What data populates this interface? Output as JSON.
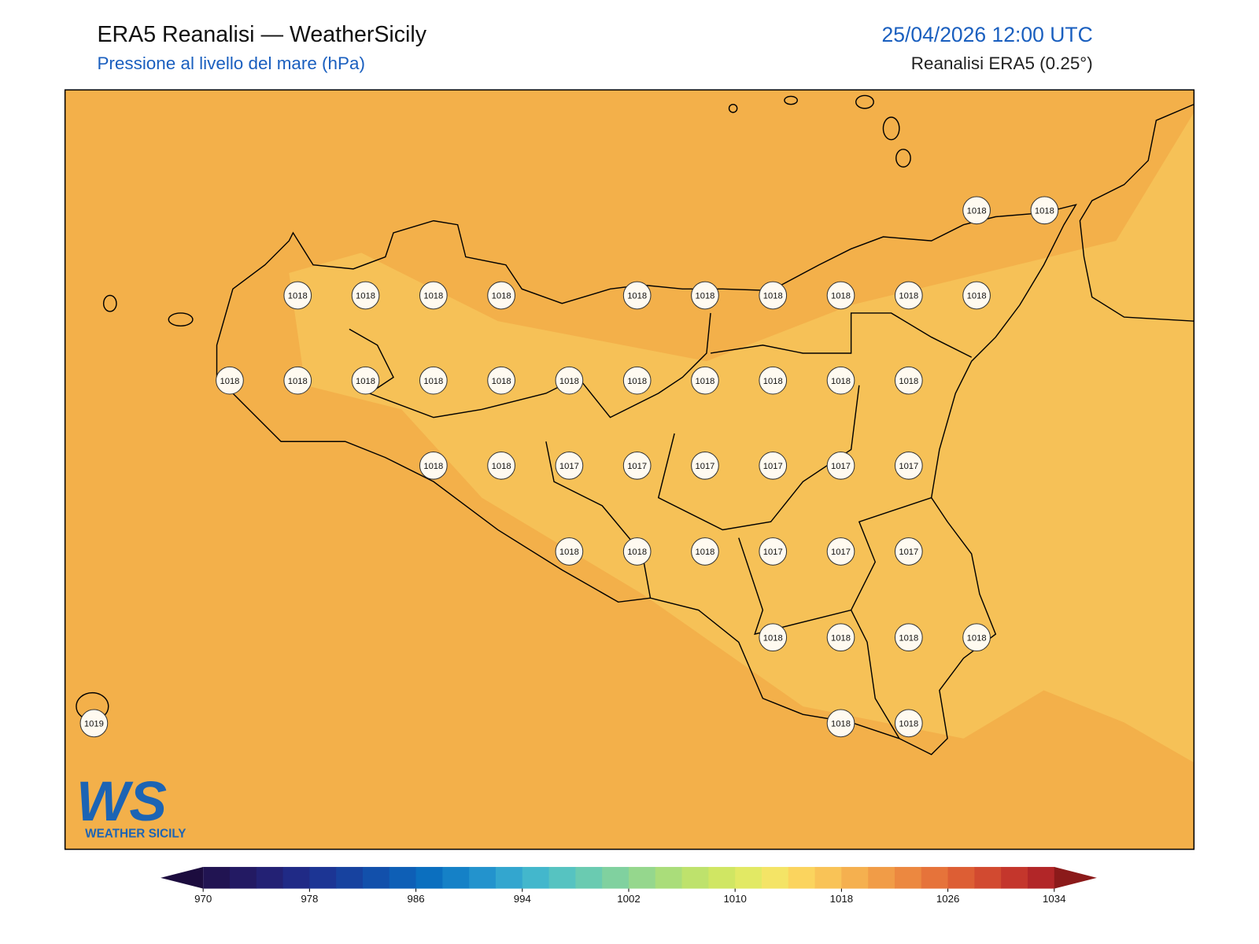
{
  "header": {
    "title": "ERA5 Reanalisi — WeatherSicily",
    "subtitle": "Pressione al livello del mare (hPa)",
    "datetime": "25/04/2026 12:00 UTC",
    "source": "Reanalisi ERA5 (0.25°)"
  },
  "map": {
    "stations": [
      [
        1018,
        1018
      ],
      [
        1018,
        1018,
        1018,
        1018,
        1018,
        1018,
        1018,
        1018,
        1018,
        1018
      ],
      [
        1018,
        1018,
        1018,
        1018,
        1018,
        1018,
        1018,
        1018,
        1018,
        1018,
        1018
      ],
      [
        1018,
        1018,
        1017,
        1017,
        1017,
        1017,
        1017,
        1017
      ],
      [
        1018,
        1018,
        1018,
        1017,
        1017,
        1017
      ],
      [
        1018,
        1018,
        1018,
        1018
      ],
      [
        1019,
        1018,
        1018
      ]
    ]
  },
  "logo": {
    "mark": "WS",
    "text": "WEATHER SICILY"
  },
  "colorbar": {
    "lim": [
      970,
      1034
    ],
    "ticks": [
      970,
      978,
      986,
      994,
      1002,
      1010,
      1018,
      1026,
      1034
    ],
    "colors": [
      "#211452",
      "#231a63",
      "#232174",
      "#202a86",
      "#1c3594",
      "#17429f",
      "#1250ab",
      "#0e5fb6",
      "#0b6fbf",
      "#1581c7",
      "#2393cd",
      "#33a6cf",
      "#43b7cc",
      "#56c3c1",
      "#6acbb1",
      "#80d19f",
      "#95d78d",
      "#aadd7a",
      "#bee26c",
      "#d0e663",
      "#e2e964",
      "#f4e466",
      "#fbd45e",
      "#f9c357",
      "#f5b04f",
      "#f19c47",
      "#ec8840",
      "#e6733a",
      "#dd5e34",
      "#d24a30",
      "#c4362c",
      "#b22628"
    ],
    "under": "#1c0c3e",
    "over": "#8b1a1a"
  }
}
